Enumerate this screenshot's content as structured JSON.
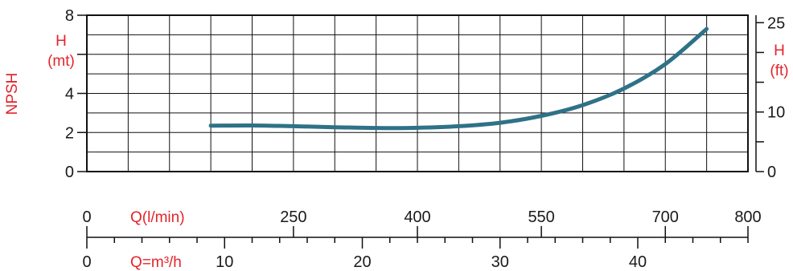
{
  "chart_data": {
    "type": "line",
    "left_axis": {
      "title": "NPSH",
      "label_line1": "H",
      "label_line2": "(mt)",
      "ticks": [
        0,
        2,
        4,
        6,
        8
      ],
      "tick_labels": [
        "0",
        "2",
        "4",
        "",
        "8"
      ],
      "ylim": [
        0,
        8
      ]
    },
    "right_axis": {
      "label_line1": "H",
      "label_line2": "(ft)",
      "ticks": [
        0,
        10,
        25
      ],
      "tick_labels": [
        "0",
        "10",
        "25"
      ],
      "ylim_ft": [
        0,
        26.25
      ]
    },
    "flow_lmin_axis": {
      "label": "Q(l/min)",
      "ticks": [
        0,
        250,
        400,
        550,
        700,
        800
      ],
      "tick_labels": [
        "0",
        "250",
        "400",
        "550",
        "700",
        "800"
      ],
      "range": [
        0,
        800
      ]
    },
    "flow_m3h_axis": {
      "label": "Q=m³/h",
      "ticks": [
        0,
        10,
        20,
        30,
        40
      ],
      "tick_labels": [
        "0",
        "10",
        "20",
        "30",
        "40"
      ],
      "range": [
        0,
        48
      ]
    },
    "grid": true,
    "grid_columns": 16,
    "series": [
      {
        "color": "#2e7287",
        "x": [
          150,
          200,
          250,
          300,
          350,
          400,
          450,
          500,
          550,
          600,
          650,
          700,
          750
        ],
        "y": [
          2.35,
          2.36,
          2.32,
          2.27,
          2.23,
          2.24,
          2.32,
          2.5,
          2.85,
          3.4,
          4.25,
          5.5,
          7.3
        ]
      }
    ]
  }
}
